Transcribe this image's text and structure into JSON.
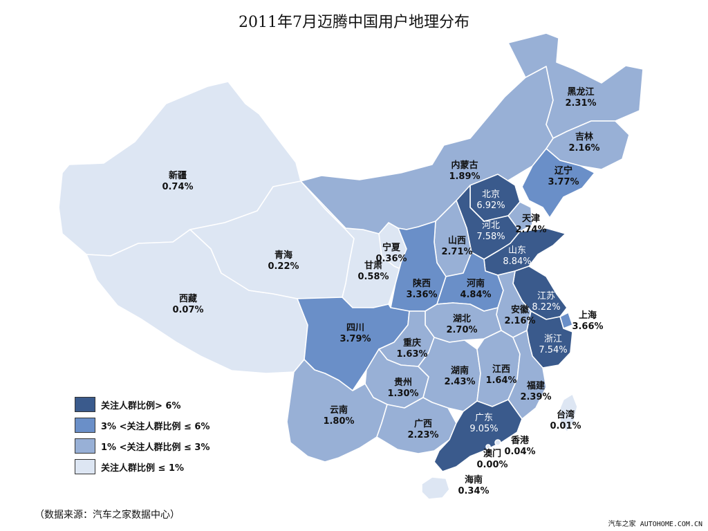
{
  "title": "2011年7月迈腾中国用户地理分布",
  "colors": {
    "tier1": "#3a5a8c",
    "tier2": "#6a8fc8",
    "tier3": "#98b0d6",
    "tier4": "#dde6f3"
  },
  "legend": [
    {
      "label": "关注人群比例> 6%",
      "color": "#3a5a8c"
    },
    {
      "label": "3% <关注人群比例 ≤ 6%",
      "color": "#6a8fc8"
    },
    {
      "label": "1% <关注人群比例 ≤ 3%",
      "color": "#98b0d6"
    },
    {
      "label": "关注人群比例 ≤ 1%",
      "color": "#dde6f3"
    }
  ],
  "provinces": [
    {
      "id": "xinjiang",
      "name": "新疆",
      "value": "0.74%",
      "tier": 4
    },
    {
      "id": "xizang",
      "name": "西藏",
      "value": "0.07%",
      "tier": 4
    },
    {
      "id": "qinghai",
      "name": "青海",
      "value": "0.22%",
      "tier": 4
    },
    {
      "id": "gansu",
      "name": "甘肃",
      "value": "0.58%",
      "tier": 4
    },
    {
      "id": "ningxia",
      "name": "宁夏",
      "value": "0.36%",
      "tier": 4
    },
    {
      "id": "neimenggu",
      "name": "内蒙古",
      "value": "1.89%",
      "tier": 3
    },
    {
      "id": "heilongjiang",
      "name": "黑龙江",
      "value": "2.31%",
      "tier": 3
    },
    {
      "id": "jilin",
      "name": "吉林",
      "value": "2.16%",
      "tier": 3
    },
    {
      "id": "liaoning",
      "name": "辽宁",
      "value": "3.77%",
      "tier": 2
    },
    {
      "id": "beijing",
      "name": "北京",
      "value": "6.92%",
      "tier": 1
    },
    {
      "id": "tianjin",
      "name": "天津",
      "value": "2.74%",
      "tier": 3
    },
    {
      "id": "hebei",
      "name": "河北",
      "value": "7.58%",
      "tier": 1
    },
    {
      "id": "shandong",
      "name": "山东",
      "value": "8.84%",
      "tier": 1
    },
    {
      "id": "shanxi",
      "name": "山西",
      "value": "2.71%",
      "tier": 3
    },
    {
      "id": "shaanxi",
      "name": "陕西",
      "value": "3.36%",
      "tier": 2
    },
    {
      "id": "henan",
      "name": "河南",
      "value": "4.84%",
      "tier": 2
    },
    {
      "id": "jiangsu",
      "name": "江苏",
      "value": "8.22%",
      "tier": 1
    },
    {
      "id": "anhui",
      "name": "安徽",
      "value": "2.16%",
      "tier": 3
    },
    {
      "id": "shanghai",
      "name": "上海",
      "value": "3.66%",
      "tier": 2
    },
    {
      "id": "zhejiang",
      "name": "浙江",
      "value": "7.54%",
      "tier": 1
    },
    {
      "id": "sichuan",
      "name": "四川",
      "value": "3.79%",
      "tier": 2
    },
    {
      "id": "chongqing",
      "name": "重庆",
      "value": "1.63%",
      "tier": 3
    },
    {
      "id": "hubei",
      "name": "湖北",
      "value": "2.70%",
      "tier": 3
    },
    {
      "id": "hunan",
      "name": "湖南",
      "value": "2.43%",
      "tier": 3
    },
    {
      "id": "jiangxi",
      "name": "江西",
      "value": "1.64%",
      "tier": 3
    },
    {
      "id": "fujian",
      "name": "福建",
      "value": "2.39%",
      "tier": 3
    },
    {
      "id": "guizhou",
      "name": "贵州",
      "value": "1.30%",
      "tier": 3
    },
    {
      "id": "yunnan",
      "name": "云南",
      "value": "1.80%",
      "tier": 3
    },
    {
      "id": "guangxi",
      "name": "广西",
      "value": "2.23%",
      "tier": 3
    },
    {
      "id": "guangdong",
      "name": "广东",
      "value": "9.05%",
      "tier": 1
    },
    {
      "id": "hainan",
      "name": "海南",
      "value": "0.34%",
      "tier": 4
    },
    {
      "id": "taiwan",
      "name": "台湾",
      "value": "0.01%",
      "tier": 4
    },
    {
      "id": "xianggang",
      "name": "香港",
      "value": "0.04%",
      "tier": 4
    },
    {
      "id": "aomen",
      "name": "澳门",
      "value": "0.00%",
      "tier": 4
    }
  ],
  "source_note": "（数据来源：汽车之家数据中心）",
  "watermark": "汽车之家 AUTOHOME.COM.CN"
}
